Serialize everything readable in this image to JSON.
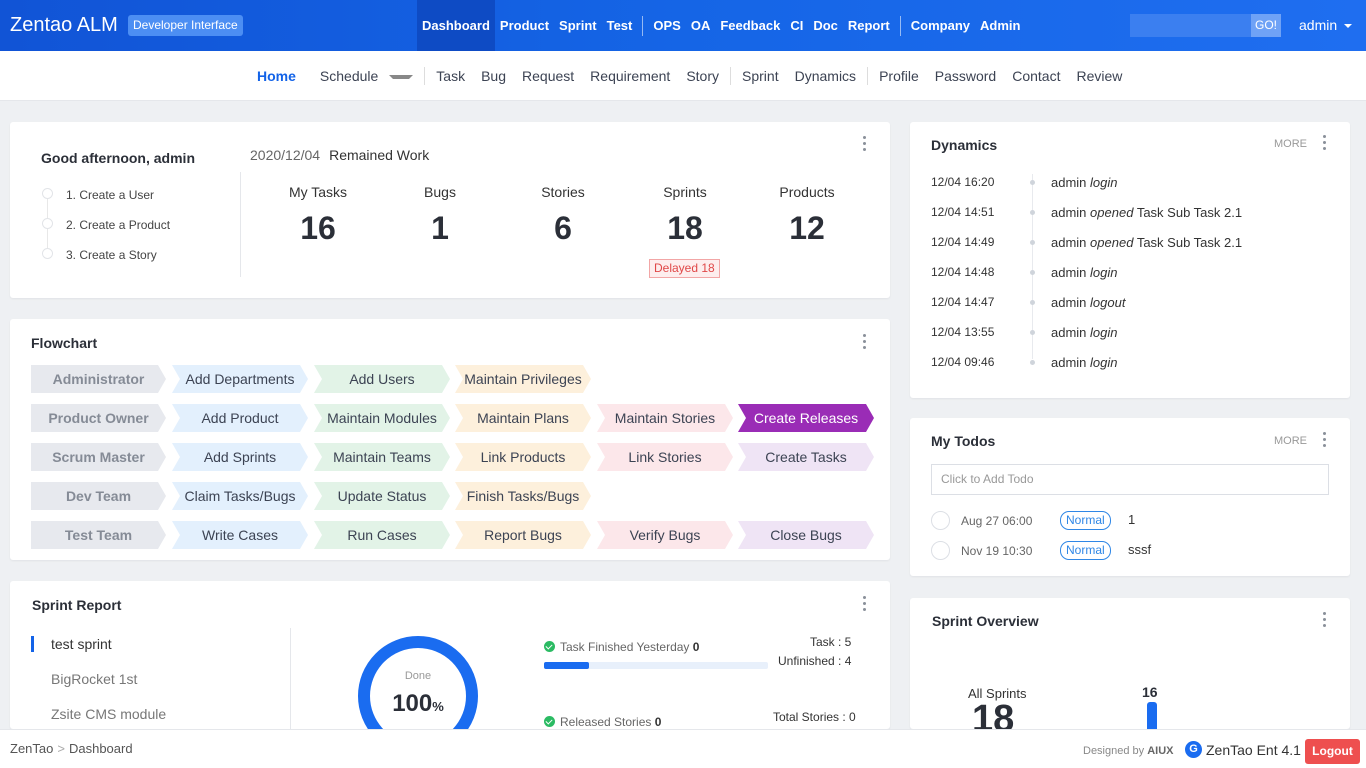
{
  "header": {
    "logo": "Zentao ALM",
    "dev_tag": "Developer Interface",
    "nav": [
      "Dashboard",
      "Product",
      "Sprint",
      "Test",
      "OPS",
      "OA",
      "Feedback",
      "CI",
      "Doc",
      "Report",
      "Company",
      "Admin"
    ],
    "search_button": "GO!",
    "user": "admin"
  },
  "subnav": {
    "items": [
      "Home",
      "Schedule",
      "Task",
      "Bug",
      "Request",
      "Requirement",
      "Story",
      "Sprint",
      "Dynamics",
      "Profile",
      "Password",
      "Contact",
      "Review"
    ]
  },
  "welcome": {
    "greeting": "Good afternoon, admin",
    "date": "2020/12/04",
    "remained": "Remained Work",
    "steps": [
      "1. Create a User",
      "2. Create a Product",
      "3. Create a Story"
    ],
    "stats": [
      {
        "label": "My Tasks",
        "value": "16"
      },
      {
        "label": "Bugs",
        "value": "1"
      },
      {
        "label": "Stories",
        "value": "6"
      },
      {
        "label": "Sprints",
        "value": "18"
      },
      {
        "label": "Products",
        "value": "12"
      }
    ],
    "delayed": "Delayed 18"
  },
  "flowchart": {
    "title": "Flowchart",
    "rows": [
      {
        "role": "Administrator",
        "steps": [
          "Add Departments",
          "Add Users",
          "Maintain Privileges"
        ]
      },
      {
        "role": "Product Owner",
        "steps": [
          "Add Product",
          "Maintain Modules",
          "Maintain Plans",
          "Maintain Stories",
          "Create Releases"
        ]
      },
      {
        "role": "Scrum Master",
        "steps": [
          "Add Sprints",
          "Maintain Teams",
          "Link Products",
          "Link Stories",
          "Create Tasks"
        ]
      },
      {
        "role": "Dev Team",
        "steps": [
          "Claim Tasks/Bugs",
          "Update Status",
          "Finish Tasks/Bugs"
        ]
      },
      {
        "role": "Test Team",
        "steps": [
          "Write Cases",
          "Run Cases",
          "Report Bugs",
          "Verify Bugs",
          "Close Bugs"
        ]
      }
    ]
  },
  "dynamics": {
    "title": "Dynamics",
    "more": "MORE",
    "items": [
      {
        "time": "12/04 16:20",
        "actor": "admin",
        "action": "login",
        "object": ""
      },
      {
        "time": "12/04 14:51",
        "actor": "admin",
        "action": "opened",
        "object": "Task Sub Task 2.1"
      },
      {
        "time": "12/04 14:49",
        "actor": "admin",
        "action": "opened",
        "object": "Task Sub Task 2.1"
      },
      {
        "time": "12/04 14:48",
        "actor": "admin",
        "action": "login",
        "object": ""
      },
      {
        "time": "12/04 14:47",
        "actor": "admin",
        "action": "logout",
        "object": ""
      },
      {
        "time": "12/04 13:55",
        "actor": "admin",
        "action": "login",
        "object": ""
      },
      {
        "time": "12/04 09:46",
        "actor": "admin",
        "action": "login",
        "object": ""
      }
    ]
  },
  "todos": {
    "title": "My Todos",
    "more": "MORE",
    "placeholder": "Click to Add Todo",
    "items": [
      {
        "date": "Aug 27 06:00",
        "priority": "Normal",
        "name": "1"
      },
      {
        "date": "Nov 19 10:30",
        "priority": "Normal",
        "name": "sssf"
      }
    ]
  },
  "sprint_report": {
    "title": "Sprint Report",
    "sprints": [
      "test sprint",
      "BigRocket 1st",
      "Zsite CMS module"
    ],
    "done_label": "Done",
    "done_value": "100",
    "done_unit": "%",
    "task_finished_label": "Task Finished Yesterday",
    "task_finished_value": "0",
    "task_progress": 0.2,
    "task_label": "Task : 5",
    "unfinished_label": "Unfinished : 4",
    "released_label": "Released Stories",
    "released_value": "0",
    "total_stories_label": "Total Stories : 0"
  },
  "sprint_overview": {
    "title": "Sprint Overview",
    "all_label": "All Sprints",
    "all_value": "18",
    "bar_value": "16"
  },
  "footer": {
    "crumb_root": "ZenTao",
    "crumb_sep": ">",
    "crumb_page": "Dashboard",
    "designed_by": "Designed by",
    "designer": "AIUX",
    "version": "ZenTao Ent 4.1",
    "logout": "Logout"
  }
}
